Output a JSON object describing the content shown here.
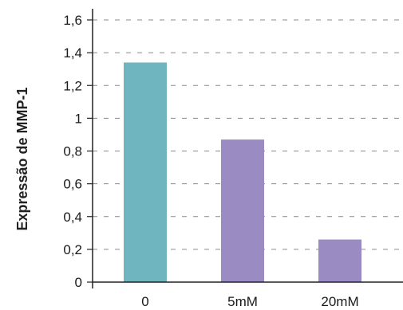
{
  "chart_data": {
    "type": "bar",
    "title": "",
    "xlabel": "",
    "ylabel": "Expressão de MMP-1",
    "categories": [
      "0",
      "5mM",
      "20mM"
    ],
    "values": [
      1.34,
      0.87,
      0.26
    ],
    "ylim": [
      0,
      1.6
    ],
    "yticks": [
      0,
      0.2,
      0.4,
      0.6,
      0.8,
      1.0,
      1.2,
      1.4,
      1.6
    ],
    "ytick_labels": [
      "0",
      "0,2",
      "0,4",
      "0,6",
      "0,8",
      "1",
      "1,2",
      "1,4",
      "1,6"
    ],
    "bar_colors": [
      "#6fb5bf",
      "#9a8cc2",
      "#9a8cc2"
    ],
    "grid": true,
    "grid_style": "dashed",
    "legend": "none"
  }
}
